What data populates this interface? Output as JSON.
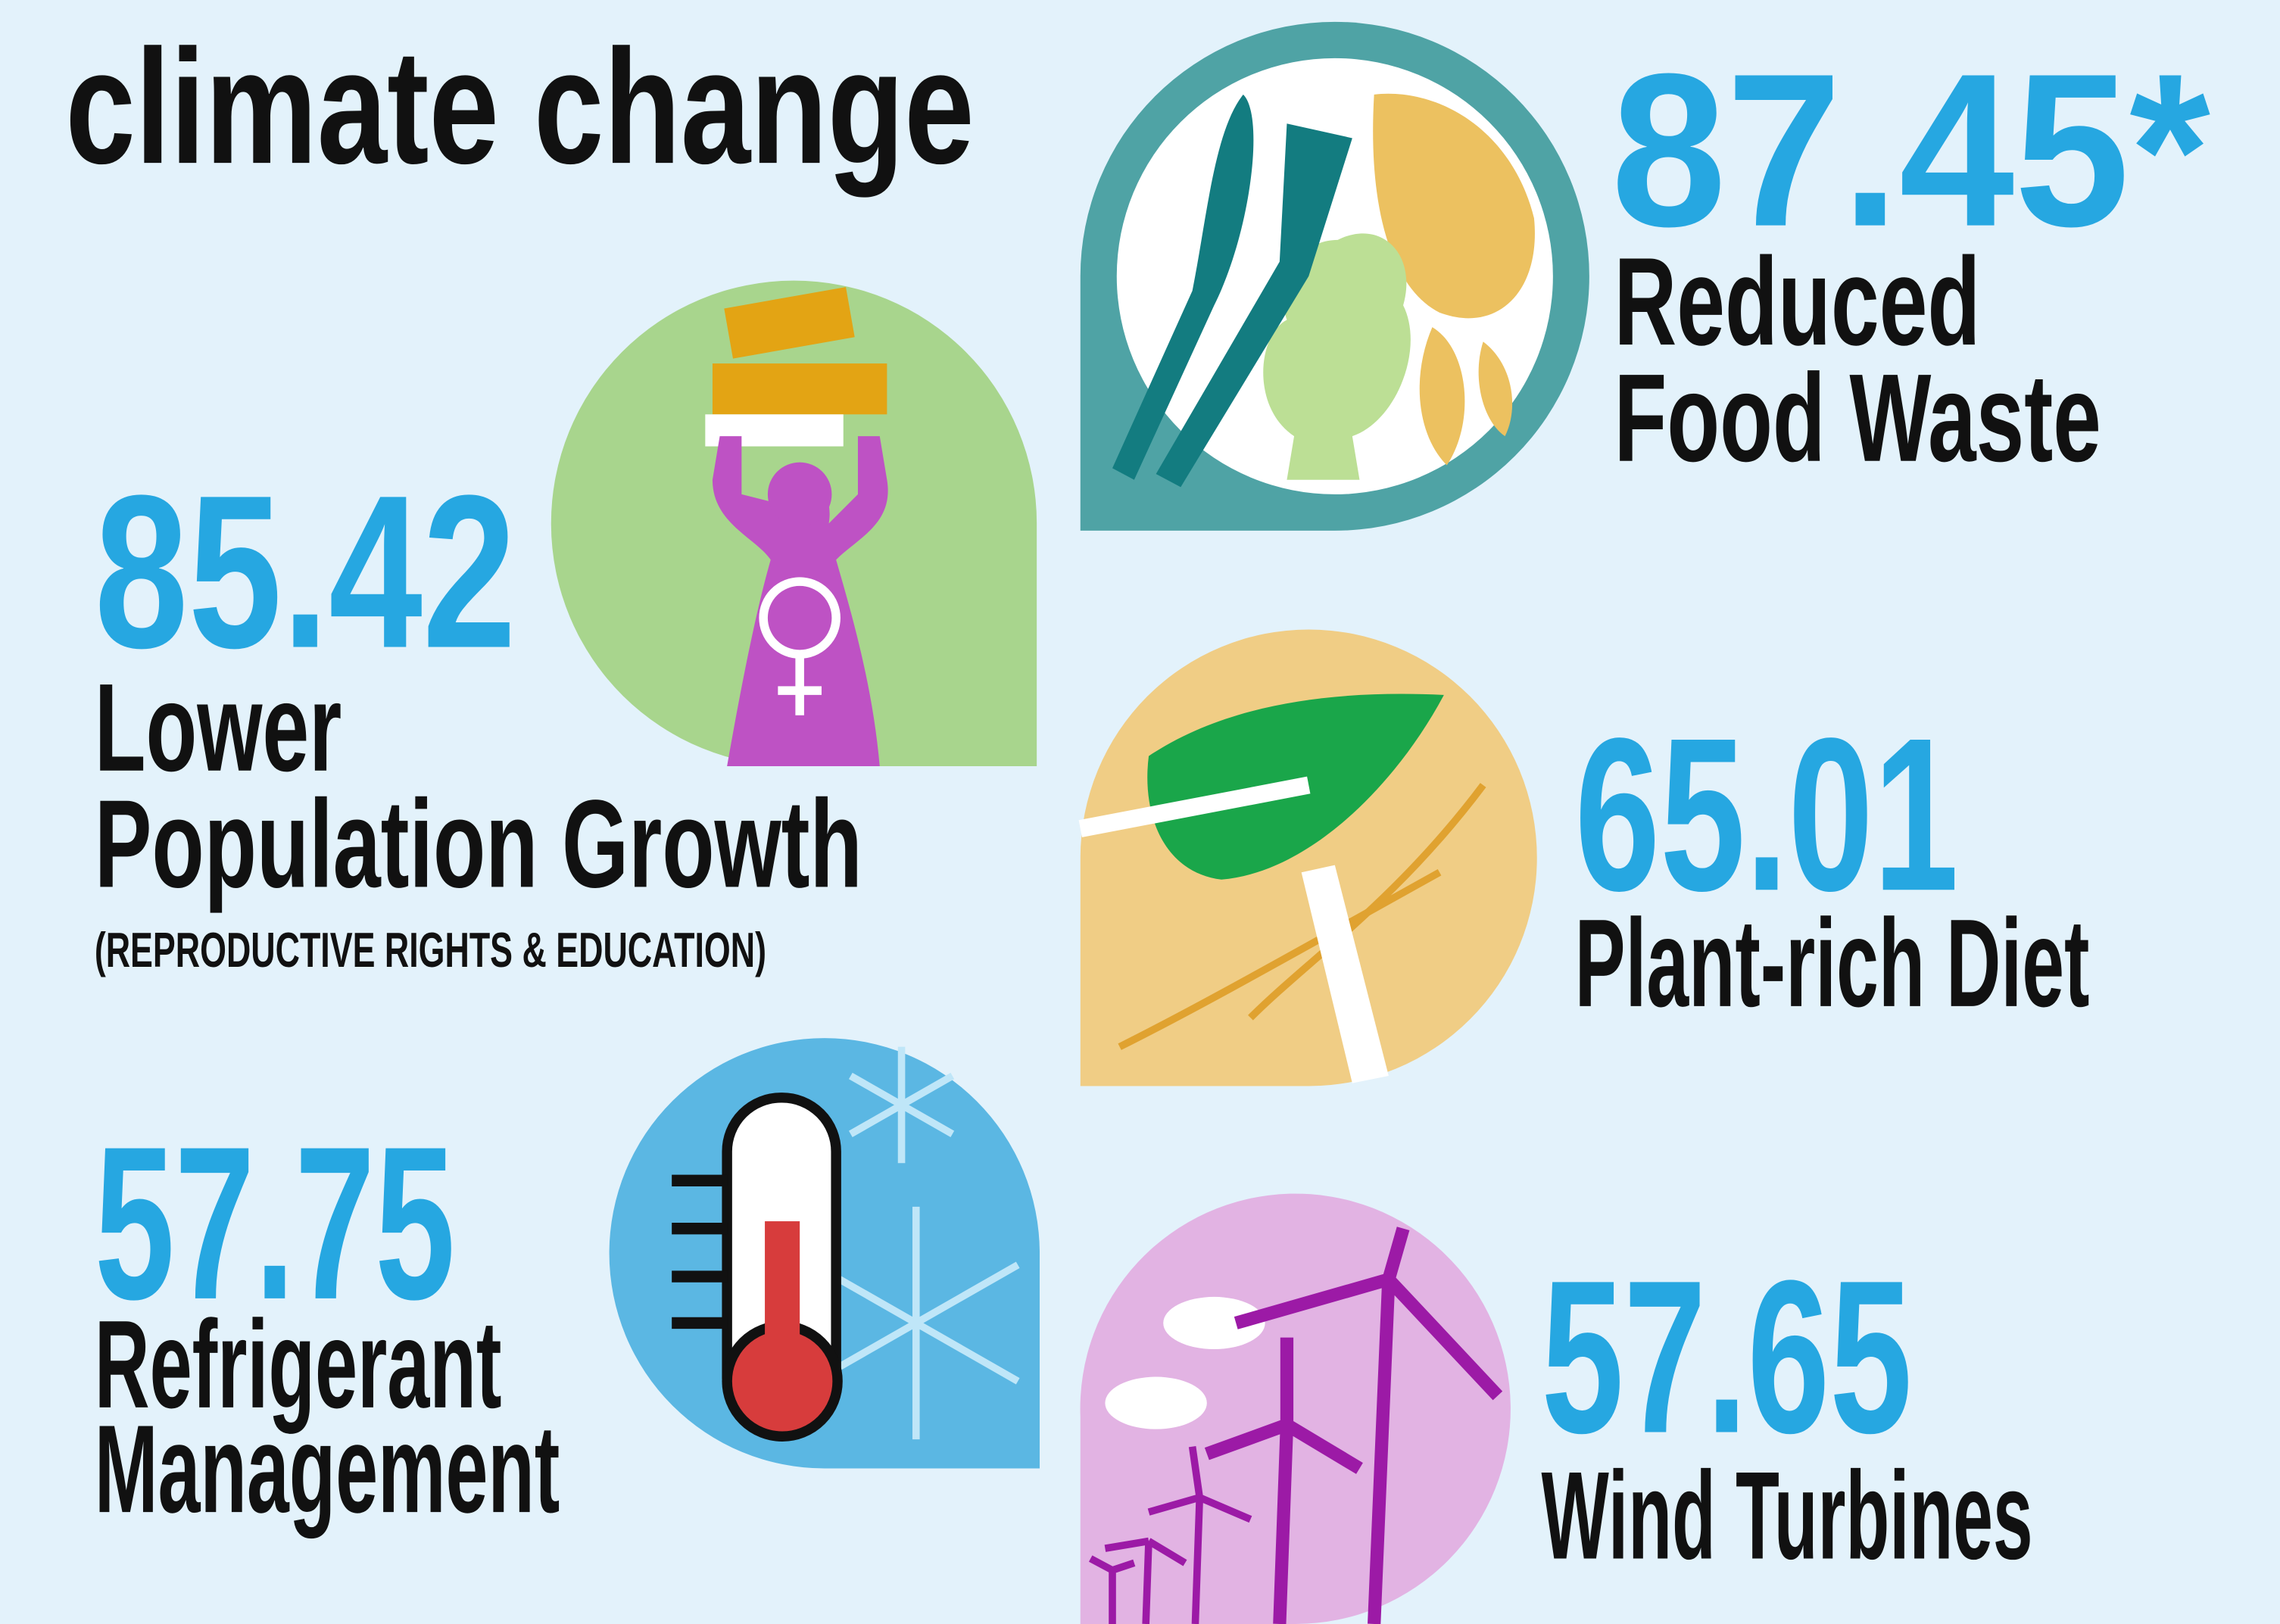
{
  "title": "climate change",
  "solutions": [
    {
      "value": "87.45*",
      "label_lines": [
        "Reduced",
        "Food Waste"
      ]
    },
    {
      "value": "85.42",
      "label_lines": [
        "Lower",
        "Population Growth"
      ],
      "note": "(REPRODUCTIVE RIGHTS & EDUCATION)"
    },
    {
      "value": "65.01",
      "label_lines": [
        "Plant-rich Diet"
      ]
    },
    {
      "value": "57.75",
      "label_lines": [
        "Refrigerant",
        "Management"
      ]
    },
    {
      "value": "57.65",
      "label_lines": [
        "Wind Turbines"
      ]
    }
  ]
}
